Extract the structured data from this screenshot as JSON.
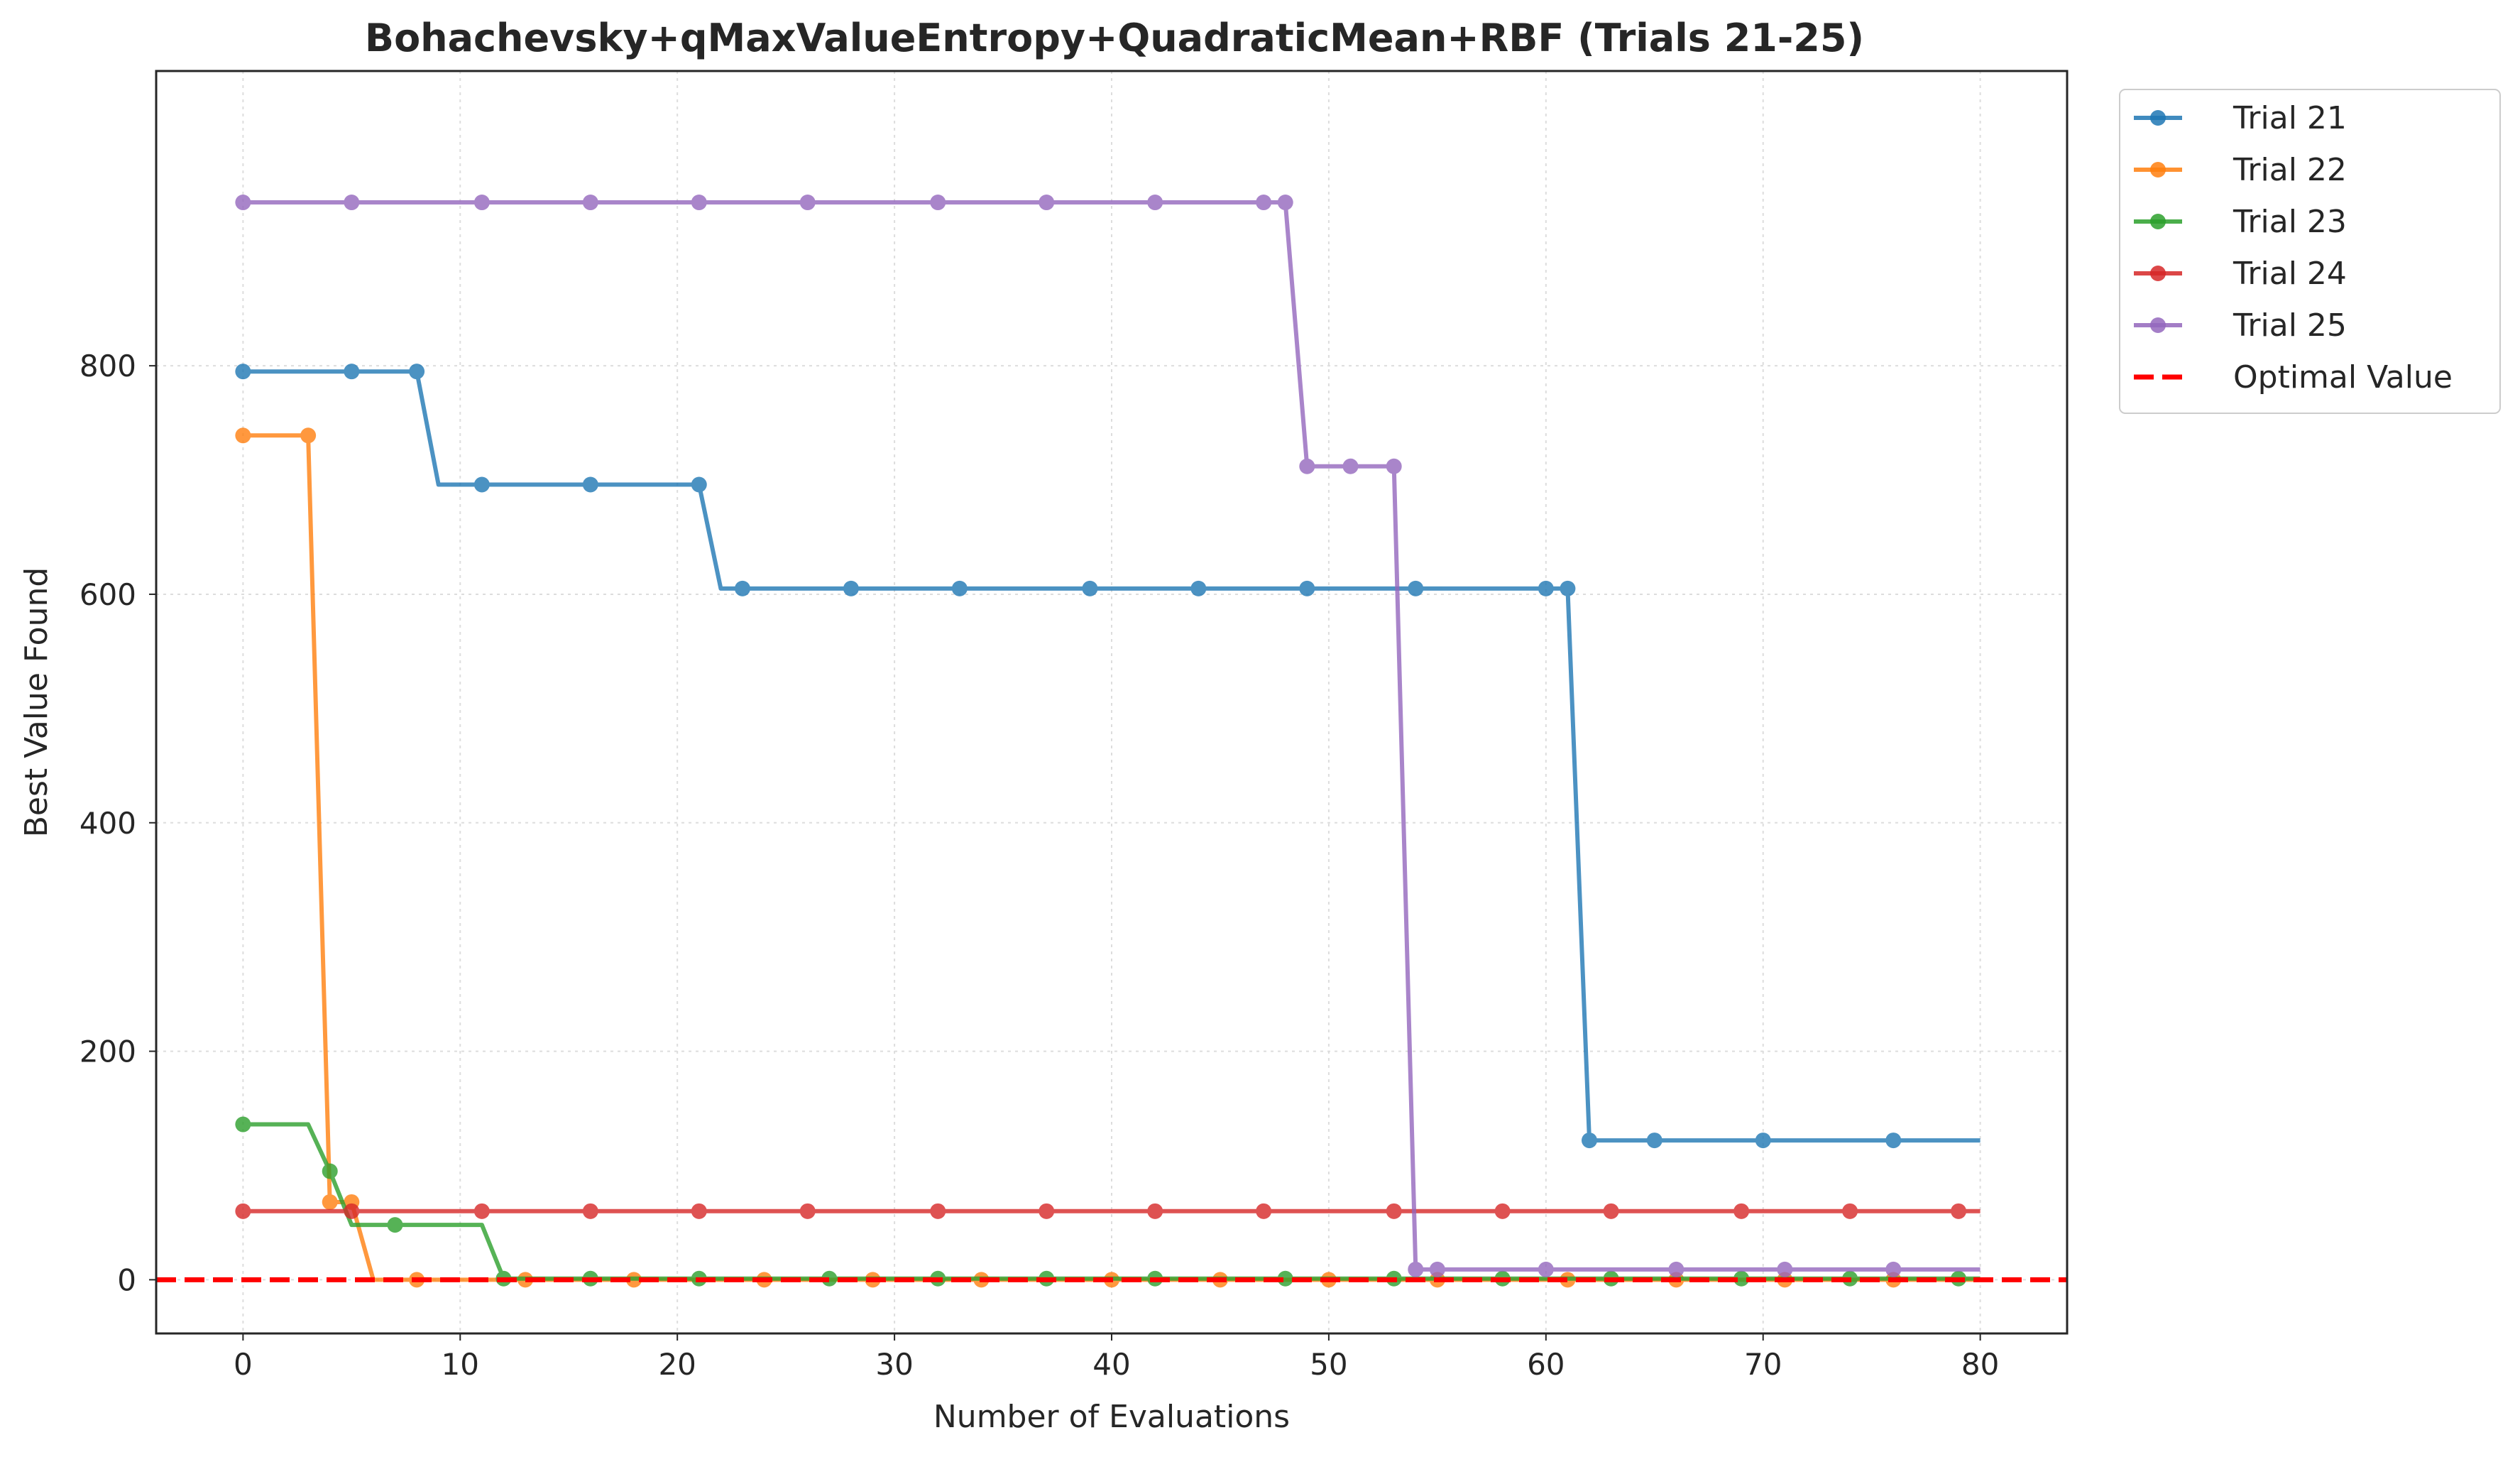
{
  "chart_data": {
    "type": "line",
    "title": "Bohachevsky+qMaxValueEntropy+QuadraticMean+RBF (Trials 21-25)",
    "xlabel": "Number of Evaluations",
    "ylabel": "Best Value Found",
    "xlim": [
      -4,
      84
    ],
    "ylim": [
      -47,
      1058
    ],
    "xticks": [
      0,
      10,
      20,
      30,
      40,
      50,
      60,
      70,
      80
    ],
    "yticks": [
      0,
      200,
      400,
      600,
      800
    ],
    "grid": true,
    "legend_position": "outside-top-right",
    "series": [
      {
        "name": "Trial 21",
        "color": "#1f77b4",
        "line": [
          [
            0,
            795
          ],
          [
            8,
            795
          ],
          [
            9,
            696
          ],
          [
            21,
            696
          ],
          [
            22,
            605
          ],
          [
            61,
            605
          ],
          [
            62,
            122
          ],
          [
            80,
            122
          ]
        ],
        "markers": [
          [
            0,
            795
          ],
          [
            5,
            795
          ],
          [
            8,
            795
          ],
          [
            11,
            696
          ],
          [
            16,
            696
          ],
          [
            21,
            696
          ],
          [
            23,
            605
          ],
          [
            28,
            605
          ],
          [
            33,
            605
          ],
          [
            39,
            605
          ],
          [
            44,
            605
          ],
          [
            49,
            605
          ],
          [
            54,
            605
          ],
          [
            60,
            605
          ],
          [
            61,
            605
          ],
          [
            62,
            122
          ],
          [
            65,
            122
          ],
          [
            70,
            122
          ],
          [
            76,
            122
          ]
        ]
      },
      {
        "name": "Trial 22",
        "color": "#ff7f0e",
        "line": [
          [
            0,
            739
          ],
          [
            3,
            739
          ],
          [
            4,
            68
          ],
          [
            5,
            68
          ],
          [
            6,
            0
          ],
          [
            80,
            0
          ]
        ],
        "markers": [
          [
            0,
            739
          ],
          [
            3,
            739
          ],
          [
            4,
            68
          ],
          [
            5,
            68
          ],
          [
            8,
            0
          ],
          [
            13,
            0
          ],
          [
            18,
            0
          ],
          [
            24,
            0
          ],
          [
            29,
            0
          ],
          [
            34,
            0
          ],
          [
            40,
            0
          ],
          [
            45,
            0
          ],
          [
            50,
            0
          ],
          [
            55,
            0
          ],
          [
            61,
            0
          ],
          [
            66,
            0
          ],
          [
            71,
            0
          ],
          [
            76,
            0
          ]
        ]
      },
      {
        "name": "Trial 23",
        "color": "#2ca02c",
        "line": [
          [
            0,
            136
          ],
          [
            3,
            136
          ],
          [
            4,
            95
          ],
          [
            5,
            48
          ],
          [
            11,
            48
          ],
          [
            12,
            1
          ],
          [
            80,
            1
          ]
        ],
        "markers": [
          [
            0,
            136
          ],
          [
            4,
            95
          ],
          [
            7,
            48
          ],
          [
            12,
            1
          ],
          [
            16,
            1
          ],
          [
            21,
            1
          ],
          [
            27,
            1
          ],
          [
            32,
            1
          ],
          [
            37,
            1
          ],
          [
            42,
            1
          ],
          [
            48,
            1
          ],
          [
            53,
            1
          ],
          [
            58,
            1
          ],
          [
            63,
            1
          ],
          [
            69,
            1
          ],
          [
            74,
            1
          ],
          [
            79,
            1
          ]
        ]
      },
      {
        "name": "Trial 24",
        "color": "#d62728",
        "line": [
          [
            0,
            60
          ],
          [
            80,
            60
          ]
        ],
        "markers": [
          [
            0,
            60
          ],
          [
            5,
            60
          ],
          [
            11,
            60
          ],
          [
            16,
            60
          ],
          [
            21,
            60
          ],
          [
            26,
            60
          ],
          [
            32,
            60
          ],
          [
            37,
            60
          ],
          [
            42,
            60
          ],
          [
            47,
            60
          ],
          [
            53,
            60
          ],
          [
            58,
            60
          ],
          [
            63,
            60
          ],
          [
            69,
            60
          ],
          [
            74,
            60
          ],
          [
            79,
            60
          ]
        ]
      },
      {
        "name": "Trial 25",
        "color": "#9467bd",
        "line": [
          [
            0,
            943
          ],
          [
            48,
            943
          ],
          [
            49,
            712
          ],
          [
            53,
            712
          ],
          [
            54,
            9
          ],
          [
            80,
            9
          ]
        ],
        "markers": [
          [
            0,
            943
          ],
          [
            5,
            943
          ],
          [
            11,
            943
          ],
          [
            16,
            943
          ],
          [
            21,
            943
          ],
          [
            26,
            943
          ],
          [
            32,
            943
          ],
          [
            37,
            943
          ],
          [
            42,
            943
          ],
          [
            47,
            943
          ],
          [
            48,
            943
          ],
          [
            49,
            712
          ],
          [
            51,
            712
          ],
          [
            53,
            712
          ],
          [
            54,
            9
          ],
          [
            55,
            9
          ],
          [
            60,
            9
          ],
          [
            66,
            9
          ],
          [
            71,
            9
          ],
          [
            76,
            9
          ]
        ]
      }
    ],
    "reference_line": {
      "name": "Optimal Value",
      "y": 0,
      "color": "#ff0000",
      "style": "dashed"
    }
  }
}
